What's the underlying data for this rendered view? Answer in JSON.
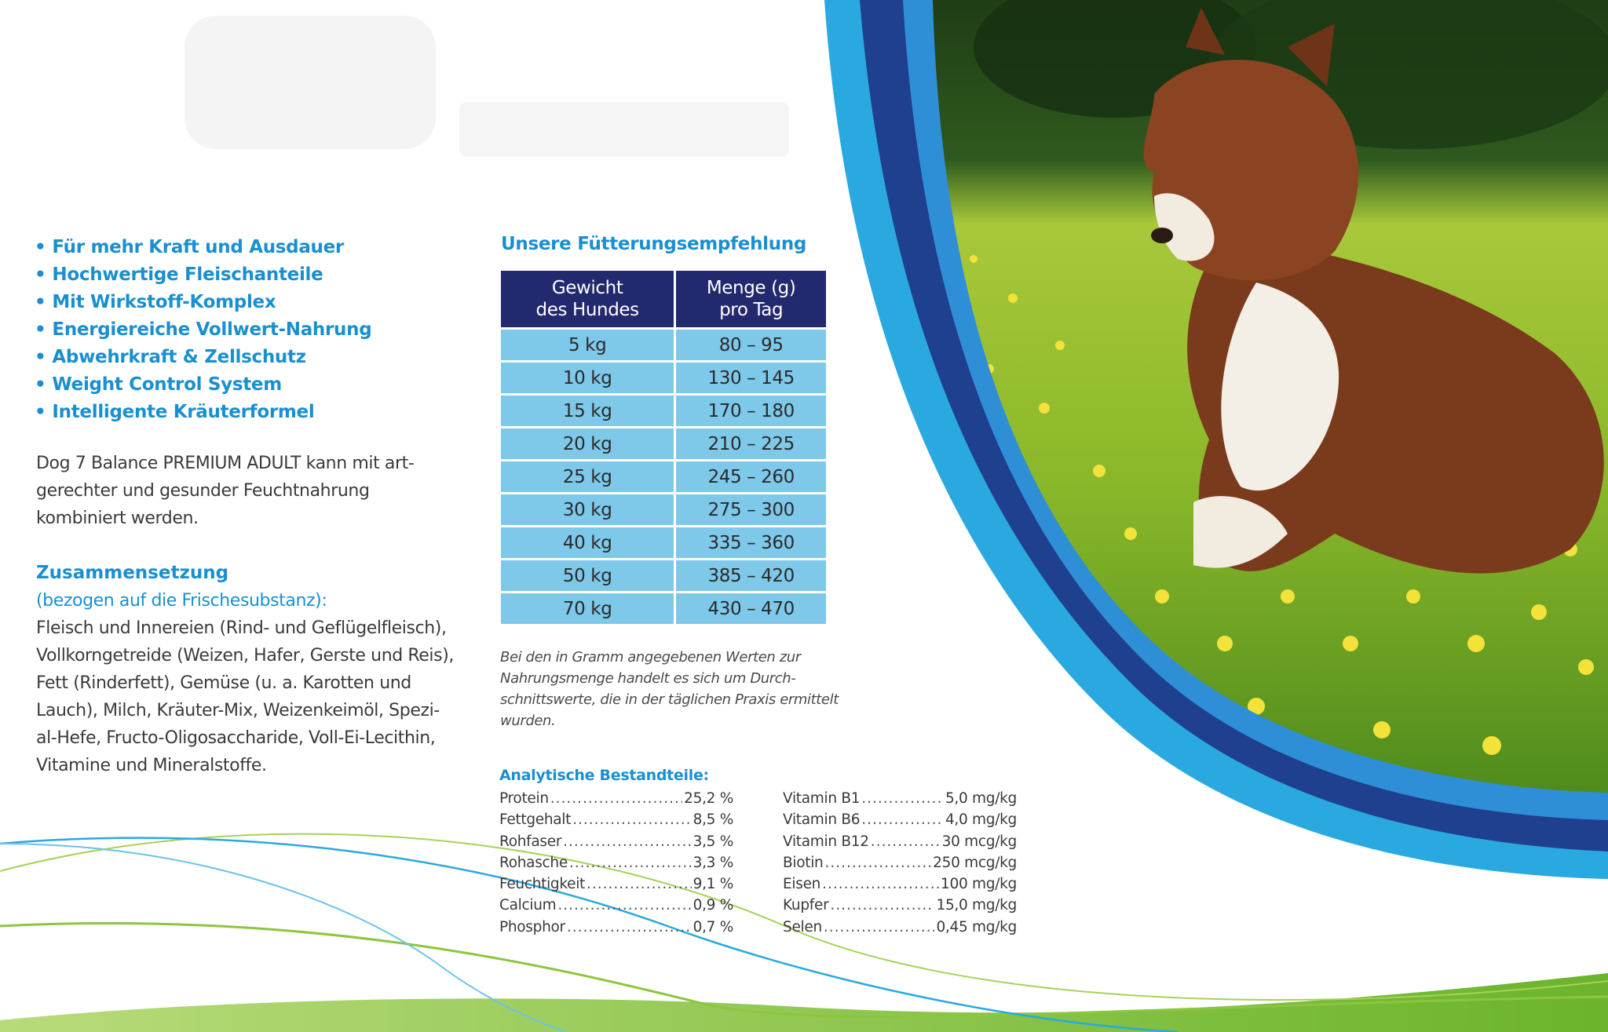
{
  "features": [
    "Für mehr Kraft und Ausdauer",
    "Hochwertige Fleischanteile",
    "Mit Wirkstoff-Komplex",
    "Energiereiche Vollwert-Nahrung",
    "Abwehrkraft & Zellschutz",
    "Weight Control System",
    "Intelligente Kräuterformel"
  ],
  "bullet": "•",
  "intro_lines": [
    "Dog 7 Balance PREMIUM ADULT kann mit art-",
    "gerechter und gesunder Feuchtnahrung",
    "kombiniert werden."
  ],
  "composition": {
    "title": "Zusammensetzung",
    "subtitle": "(bezogen auf die Frischesubstanz):",
    "lines": [
      "Fleisch und Innereien (Rind- und Geflügelfleisch),",
      "Vollkorngetreide (Weizen, Hafer, Gerste und Reis),",
      "Fett (Rinderfett), Gemüse (u. a. Karotten und",
      "Lauch), Milch, Kräuter-Mix, Weizenkeimöl, Spezi-",
      "al-Hefe, Fructo-Oligosaccharide, Voll-Ei-Lecithin,",
      "Vitamine und Mineralstoffe."
    ]
  },
  "feeding": {
    "title": "Unsere Fütterungsempfehlung",
    "header_weight": [
      "Gewicht",
      "des Hundes"
    ],
    "header_amount": [
      "Menge (g)",
      "pro Tag"
    ],
    "rows": [
      {
        "weight": "5 kg",
        "amount": "80 – 95"
      },
      {
        "weight": "10 kg",
        "amount": "130 – 145"
      },
      {
        "weight": "15 kg",
        "amount": "170 – 180"
      },
      {
        "weight": "20 kg",
        "amount": "210 – 225"
      },
      {
        "weight": "25 kg",
        "amount": "245 – 260"
      },
      {
        "weight": "30 kg",
        "amount": "275 – 300"
      },
      {
        "weight": "40 kg",
        "amount": "335 – 360"
      },
      {
        "weight": "50 kg",
        "amount": "385 – 420"
      },
      {
        "weight": "70 kg",
        "amount": "430 – 470"
      }
    ],
    "note_lines": [
      "Bei den in Gramm angegebenen Werten zur",
      "Nahrungsmenge handelt es sich um Durch-",
      "schnittswerte, die in der täglichen Praxis ermittelt",
      "wurden."
    ]
  },
  "analytical": {
    "title": "Analytische Bestandteile:",
    "left": [
      {
        "name": "Protein",
        "value": "25,2 %"
      },
      {
        "name": "Fettgehalt",
        "value": "8,5 %"
      },
      {
        "name": "Rohfaser",
        "value": "3,5 %"
      },
      {
        "name": "Rohasche",
        "value": "3,3 %"
      },
      {
        "name": "Feuchtigkeit",
        "value": "9,1 %"
      },
      {
        "name": "Calcium",
        "value": "0,9 %"
      },
      {
        "name": "Phosphor",
        "value": "0,7 %"
      }
    ],
    "right": [
      {
        "name": "Vitamin B1",
        "value": "5,0 mg/kg"
      },
      {
        "name": "Vitamin B6",
        "value": "4,0 mg/kg"
      },
      {
        "name": "Vitamin B12",
        "value": "30 mcg/kg"
      },
      {
        "name": "Biotin",
        "value": "250 mcg/kg"
      },
      {
        "name": "Eisen",
        "value": "100 mg/kg"
      },
      {
        "name": "Kupfer",
        "value": "15,0 mg/kg"
      },
      {
        "name": "Selen",
        "value": "0,45 mg/kg"
      }
    ]
  },
  "colors": {
    "accent_blue": "#1a8fd0",
    "table_header": "#23296e",
    "table_cell": "#7ec8ea",
    "wave_green": "#8cc63f",
    "wave_blue": "#29a9e0"
  },
  "image": {
    "subject": "running brown and white dog on a flower meadow"
  }
}
